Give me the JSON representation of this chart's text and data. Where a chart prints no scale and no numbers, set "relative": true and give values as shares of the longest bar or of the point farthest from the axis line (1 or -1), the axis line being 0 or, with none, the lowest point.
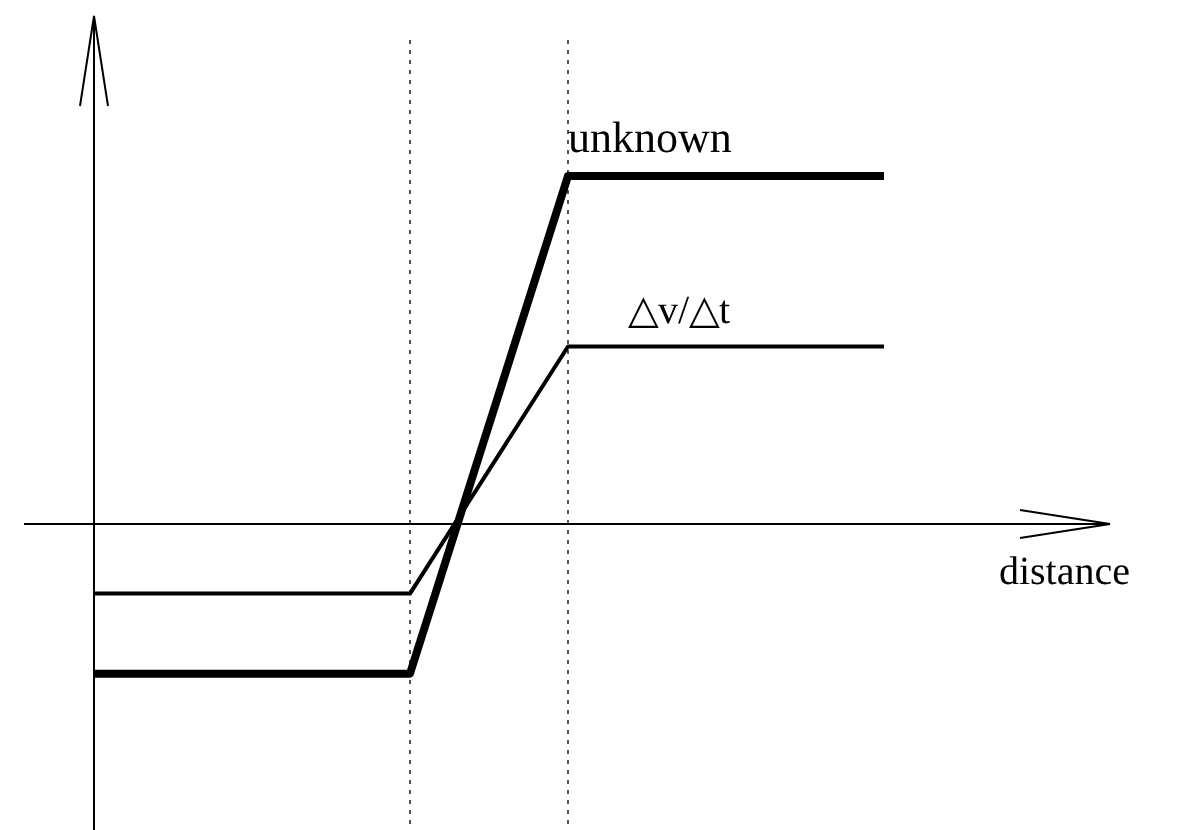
{
  "chart_data": {
    "type": "line",
    "relative": true,
    "xlabel": "distance",
    "categories": [
      null,
      null,
      null,
      null,
      null,
      null
    ],
    "legend": false,
    "marker": "none",
    "line_style": "solid",
    "series": [
      {
        "name": "unknown",
        "color": "#000000",
        "values": [
          -0.43,
          -0.43,
          -0.43,
          1,
          1,
          1
        ]
      },
      {
        "name": "△v/△t",
        "color": "#000000",
        "values": [
          -0.2,
          -0.2,
          -0.2,
          0.51,
          0.51,
          0.51
        ]
      }
    ],
    "ref_lines": [
      {
        "axis": "x",
        "color": "#555555",
        "line_style": "dotted"
      },
      {
        "axis": "x",
        "color": "#555555",
        "line_style": "dotted"
      }
    ]
  }
}
